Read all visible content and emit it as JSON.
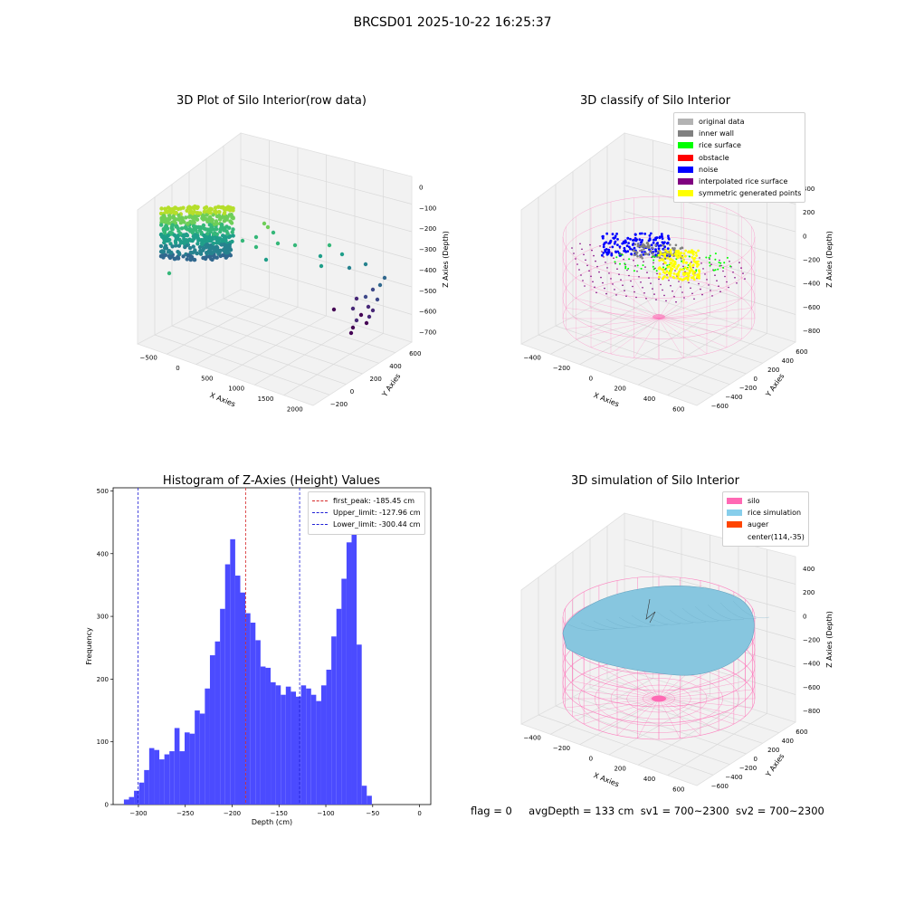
{
  "suptitle": "BRCSD01 2025-10-22 16:25:37",
  "colors": {
    "hist_bar": "#4b4bff",
    "peak_line": "#d62728",
    "limit_line": "#1f1fd6",
    "silo_wire": "#ff69b4",
    "rice": "#87c6df",
    "grid_pane": "#f2f2f2"
  },
  "panel1": {
    "title": "3D Plot of Silo Interior(row data)",
    "xlabel": "X Axies",
    "ylabel": "Y Axies",
    "zlabel": "Z Axies (Depth)",
    "xticks": [
      "−500",
      "0",
      "500",
      "1000",
      "1500",
      "2000"
    ],
    "yticks": [
      "−200",
      "0",
      "200",
      "400",
      "600"
    ],
    "zticks": [
      "0",
      "−100",
      "−200",
      "−300",
      "−400",
      "−500",
      "−600",
      "−700"
    ]
  },
  "panel2": {
    "title": "3D classify of Silo Interior",
    "xlabel": "X Axies",
    "ylabel": "Y Axies",
    "zlabel": "Z Axies (Depth)",
    "xticks": [
      "−400",
      "−200",
      "0",
      "200",
      "400",
      "600"
    ],
    "yticks": [
      "−600",
      "−400",
      "−200",
      "0",
      "200",
      "400",
      "600"
    ],
    "zticks": [
      "400",
      "200",
      "0",
      "−200",
      "−400",
      "−600",
      "−800"
    ],
    "legend": [
      {
        "label": "original data",
        "color": "#b3b3b3"
      },
      {
        "label": "inner wall",
        "color": "#808080"
      },
      {
        "label": "rice surface",
        "color": "#00ff00"
      },
      {
        "label": "obstacle",
        "color": "#ff0000"
      },
      {
        "label": "noise",
        "color": "#0000ff"
      },
      {
        "label": "interpolated rice surface",
        "color": "#800080"
      },
      {
        "label": "symmetric generated points",
        "color": "#ffff00"
      }
    ]
  },
  "panel3": {
    "title": "Histogram of Z-Axies (Height) Values",
    "xlabel": "Depth (cm)",
    "ylabel": "Frequency",
    "xticks": [
      "−300",
      "−250",
      "−200",
      "−150",
      "−100",
      "−50",
      "0"
    ],
    "yticks": [
      "0",
      "100",
      "200",
      "300",
      "400",
      "500"
    ],
    "legend": [
      {
        "label": "first_peak: -185.45 cm",
        "color": "#d62728"
      },
      {
        "label": "Upper_limit: -127.96 cm",
        "color": "#1f1fd6"
      },
      {
        "label": "Lower_limit: -300.44 cm",
        "color": "#1f1fd6"
      }
    ]
  },
  "chart_data": {
    "type": "bar",
    "title": "Histogram of Z-Axies (Height) Values",
    "xlabel": "Depth (cm)",
    "ylabel": "Frequency",
    "xlim": [
      -327,
      12
    ],
    "ylim": [
      0,
      505
    ],
    "bin_width": 5.4,
    "bin_start": -315.5,
    "values": [
      8,
      12,
      22,
      35,
      55,
      90,
      87,
      72,
      80,
      85,
      122,
      85,
      115,
      113,
      150,
      145,
      185,
      238,
      260,
      312,
      383,
      423,
      365,
      338,
      305,
      290,
      262,
      220,
      218,
      195,
      190,
      175,
      188,
      180,
      172,
      190,
      185,
      175,
      165,
      190,
      215,
      268,
      312,
      360,
      418,
      478,
      255,
      30,
      14
    ],
    "reference_lines": [
      {
        "name": "first_peak",
        "x": -185.45,
        "style": "dashed",
        "color": "#d62728"
      },
      {
        "name": "Upper_limit",
        "x": -127.96,
        "style": "dashed",
        "color": "#1f1fd6"
      },
      {
        "name": "Lower_limit",
        "x": -300.44,
        "style": "dashed",
        "color": "#1f1fd6"
      }
    ],
    "legend_position": "top-right",
    "grid": false
  },
  "panel4": {
    "title": "3D simulation of Silo Interior",
    "xlabel": "X Axies",
    "ylabel": "Y Axies",
    "zlabel": "Z Axies (Depth)",
    "xticks": [
      "−400",
      "−200",
      "0",
      "200",
      "400",
      "600"
    ],
    "yticks": [
      "−600",
      "−400",
      "−200",
      "0",
      "200",
      "400",
      "600"
    ],
    "zticks": [
      "400",
      "200",
      "0",
      "−200",
      "−400",
      "−600",
      "−800"
    ],
    "legend": [
      {
        "label": "silo",
        "color": "#ff69b4"
      },
      {
        "label": "rice simulation",
        "color": "#87ceeb"
      },
      {
        "label": "auger",
        "color": "#ff4500"
      },
      {
        "label": "center(114,-35)",
        "color": ""
      }
    ]
  },
  "status": {
    "flag": "flag = 0",
    "avg_depth": "avgDepth = 133 cm",
    "sv1": "sv1 = 700~2300",
    "sv2": "sv2 = 700~2300"
  }
}
